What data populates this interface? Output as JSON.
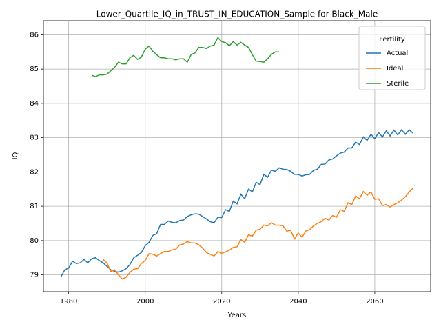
{
  "chart_data": {
    "type": "line",
    "title": "Lower_Quartile_IQ_in_TRUST_IN_EDUCATION_Sample for Black_Male",
    "x_label": "Years",
    "y_label": "IQ",
    "legend_title": "Fertility",
    "legend_position": "upper right",
    "x": [
      1978,
      1979,
      1980,
      1981,
      1982,
      1983,
      1984,
      1985,
      1986,
      1987,
      1988,
      1989,
      1990,
      1991,
      1992,
      1993,
      1994,
      1995,
      1996,
      1997,
      1998,
      1999,
      2000,
      2001,
      2002,
      2003,
      2004,
      2005,
      2006,
      2007,
      2008,
      2009,
      2010,
      2011,
      2012,
      2013,
      2014,
      2015,
      2016,
      2017,
      2018,
      2019,
      2020,
      2021,
      2022,
      2023,
      2024,
      2025,
      2026,
      2027,
      2028,
      2029,
      2030,
      2031,
      2032,
      2033,
      2034,
      2035,
      2036,
      2037,
      2038,
      2039,
      2040,
      2041,
      2042,
      2043,
      2044,
      2045,
      2046,
      2047,
      2048,
      2049,
      2050,
      2051,
      2052,
      2053,
      2054,
      2055,
      2056,
      2057,
      2058,
      2059,
      2060,
      2061,
      2062,
      2063,
      2064,
      2065,
      2066,
      2067,
      2068,
      2069,
      2070
    ],
    "series": [
      {
        "name": "Actual",
        "color": "#1f77b4",
        "values": [
          78.95,
          79.15,
          79.2,
          79.4,
          79.33,
          79.35,
          79.45,
          79.35,
          79.47,
          79.5,
          79.42,
          79.35,
          79.25,
          79.15,
          79.1,
          79.08,
          79.12,
          79.18,
          79.3,
          79.5,
          79.57,
          79.65,
          79.85,
          79.95,
          80.15,
          80.2,
          80.47,
          80.47,
          80.57,
          80.53,
          80.52,
          80.58,
          80.6,
          80.7,
          80.75,
          80.78,
          80.77,
          80.7,
          80.63,
          80.55,
          80.52,
          80.68,
          80.67,
          80.9,
          80.85,
          81.15,
          81.07,
          81.35,
          81.22,
          81.5,
          81.42,
          81.7,
          81.63,
          81.93,
          81.85,
          82.05,
          82.02,
          82.12,
          82.08,
          82.07,
          82.02,
          81.93,
          81.93,
          81.88,
          81.92,
          81.93,
          82.05,
          82.08,
          82.22,
          82.23,
          82.35,
          82.38,
          82.47,
          82.55,
          82.58,
          82.7,
          82.7,
          82.87,
          82.8,
          83.02,
          82.92,
          83.1,
          82.97,
          83.15,
          83.02,
          83.2,
          83.05,
          83.22,
          83.08,
          83.23,
          83.1,
          83.23,
          83.13
        ]
      },
      {
        "name": "Ideal",
        "color": "#ff7f0e",
        "values": [
          null,
          null,
          null,
          null,
          null,
          null,
          null,
          null,
          null,
          null,
          null,
          79.45,
          79.35,
          79.1,
          79.15,
          79.0,
          78.88,
          78.93,
          79.07,
          79.17,
          79.18,
          79.33,
          79.42,
          79.62,
          79.6,
          79.55,
          79.62,
          79.68,
          79.68,
          79.73,
          79.75,
          79.87,
          79.9,
          79.97,
          79.93,
          79.93,
          79.88,
          79.78,
          79.65,
          79.6,
          79.55,
          79.68,
          79.63,
          79.67,
          79.72,
          79.8,
          79.82,
          80.03,
          79.95,
          80.17,
          80.13,
          80.3,
          80.33,
          80.45,
          80.43,
          80.52,
          80.45,
          80.45,
          80.43,
          80.27,
          80.3,
          80.05,
          80.22,
          80.1,
          80.28,
          80.32,
          80.43,
          80.5,
          80.55,
          80.65,
          80.6,
          80.73,
          80.68,
          80.9,
          80.85,
          81.1,
          81.05,
          81.3,
          81.22,
          81.43,
          81.32,
          81.42,
          81.2,
          81.22,
          81.02,
          81.05,
          80.98,
          81.05,
          81.1,
          81.18,
          81.28,
          81.42,
          81.53
        ]
      },
      {
        "name": "Sterile",
        "color": "#2ca02c",
        "values": [
          null,
          null,
          null,
          null,
          null,
          null,
          null,
          null,
          84.82,
          84.78,
          84.83,
          84.83,
          84.85,
          84.95,
          85.05,
          85.2,
          85.15,
          85.15,
          85.33,
          85.4,
          85.28,
          85.35,
          85.58,
          85.67,
          85.52,
          85.42,
          85.33,
          85.33,
          85.3,
          85.3,
          85.27,
          85.3,
          85.3,
          85.2,
          85.42,
          85.47,
          85.63,
          85.63,
          85.6,
          85.67,
          85.7,
          85.92,
          85.8,
          85.77,
          85.68,
          85.8,
          85.7,
          85.78,
          85.7,
          85.63,
          85.42,
          85.23,
          85.22,
          85.2,
          85.3,
          85.43,
          85.5,
          85.5,
          null,
          null,
          null,
          null,
          null,
          null,
          null,
          null,
          null,
          null,
          null,
          null,
          null,
          null,
          null,
          null,
          null,
          null,
          null,
          null,
          null,
          null,
          null,
          null,
          null,
          null,
          null,
          null,
          null,
          null,
          null,
          null,
          null,
          null,
          null
        ]
      }
    ],
    "xlim": [
      1973.4,
      2074.6
    ],
    "ylim": [
      78.51,
      86.41
    ],
    "xticks": [
      1980,
      2000,
      2020,
      2040,
      2060
    ],
    "yticks": [
      79,
      80,
      81,
      82,
      83,
      84,
      85,
      86
    ],
    "grid": true
  }
}
